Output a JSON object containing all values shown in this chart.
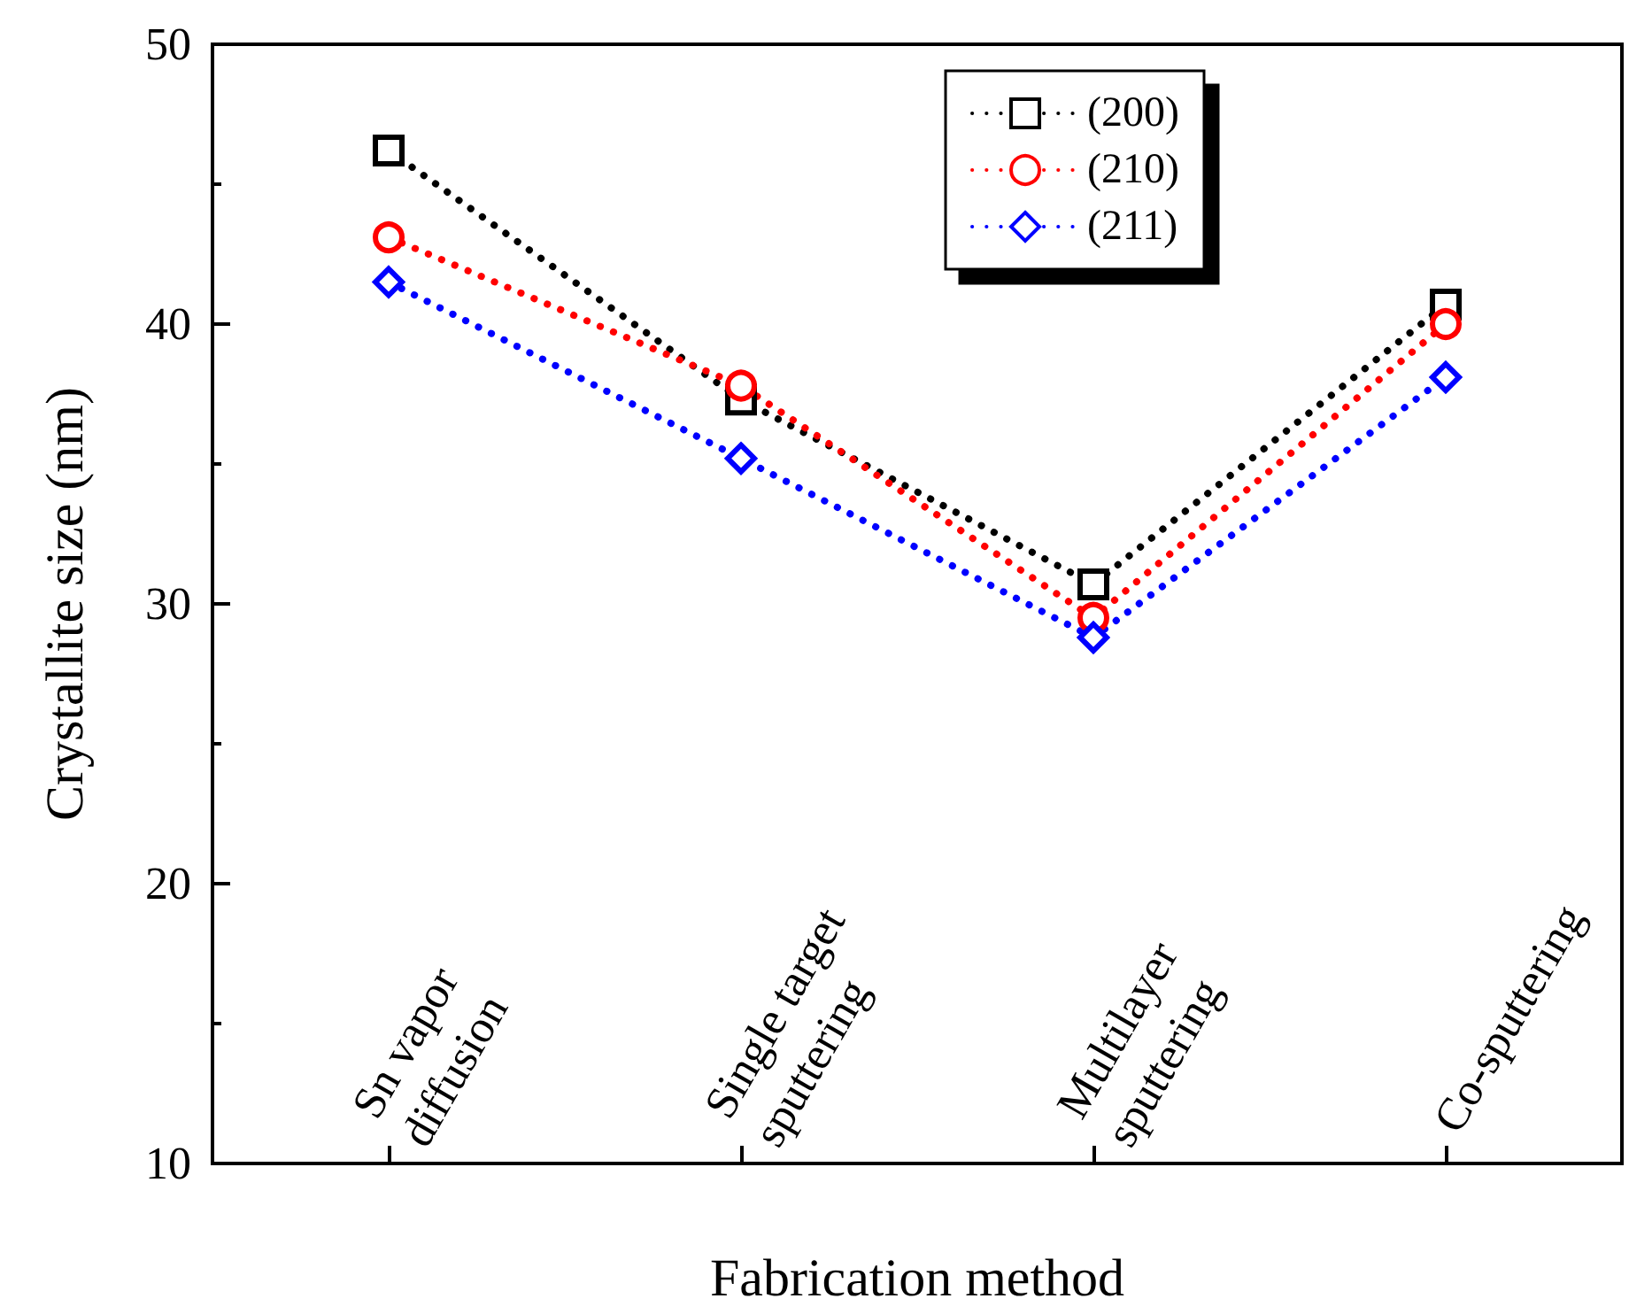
{
  "chart_data": {
    "type": "line",
    "xlabel": "Fabrication method",
    "ylabel": "Crystallite size (nm)",
    "categories": [
      "Sn vapor\ndiffusion",
      "Single target\nsputtering",
      "Multilayer\nsputtering",
      "Co-sputtering"
    ],
    "series": [
      {
        "name": "(200)",
        "color": "#000000",
        "marker": "square",
        "values": [
          46.2,
          37.3,
          30.7,
          40.7
        ]
      },
      {
        "name": "(210)",
        "color": "#ff0000",
        "marker": "circle",
        "values": [
          43.1,
          37.8,
          29.5,
          40.0
        ]
      },
      {
        "name": "(211)",
        "color": "#0000ff",
        "marker": "diamond",
        "values": [
          41.5,
          35.2,
          28.8,
          38.1
        ]
      }
    ],
    "ylim": [
      10,
      50
    ],
    "yticks": [
      10,
      20,
      30,
      40,
      50
    ],
    "grid": false,
    "legend": "top right",
    "line_style": "dotted"
  }
}
